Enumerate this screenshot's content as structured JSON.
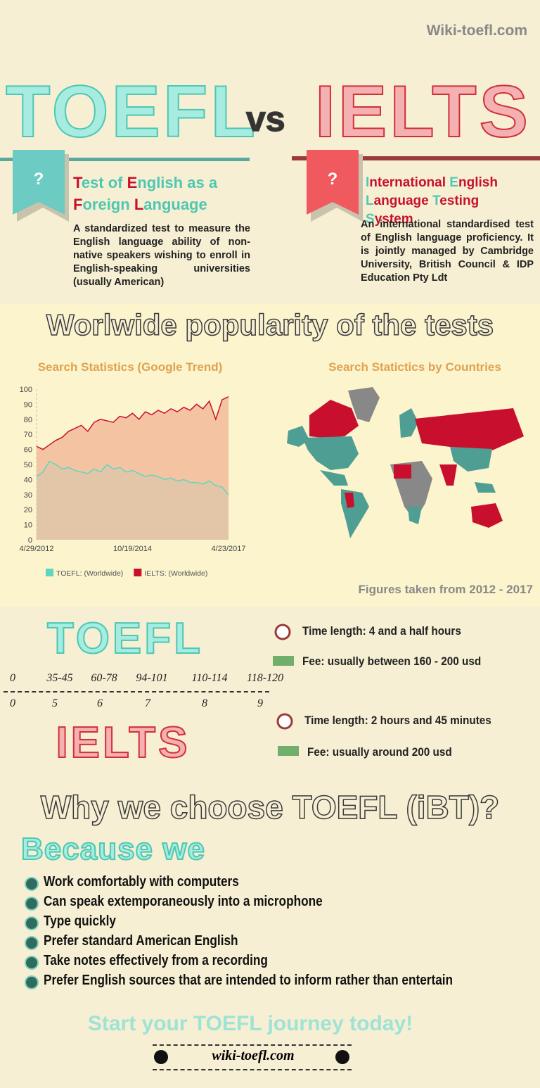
{
  "header": {
    "site": "Wiki-toefl.com",
    "left_title": "TOEFL",
    "vs": "vs",
    "right_title": "IELTS"
  },
  "toefl_box": {
    "badge": "?",
    "acronym": "Test of English as a Foreign Language",
    "description": "A standardized test to measure the English language ability of non-native speakers wishing to enroll in English-speaking universities (usually American)"
  },
  "ielts_box": {
    "badge": "?",
    "acronym": "International English Language Testing System",
    "description": "An international standardised test of English language proficiency. It is jointly managed by Cambridge University, British Council & IDP Education Pty Ldt"
  },
  "popularity": {
    "title": "Worlwide popularity of the tests",
    "map_title": "Search Statictics by Countries",
    "footnote": "Figures taken from 2012 - 2017"
  },
  "chart_data": {
    "type": "area",
    "title": "Search Statistics (Google Trend)",
    "categories": [
      "4/29/2012",
      null,
      null,
      null,
      null,
      null,
      null,
      null,
      null,
      null,
      null,
      null,
      null,
      null,
      null,
      "10/19/2014",
      null,
      null,
      null,
      null,
      null,
      null,
      null,
      null,
      null,
      null,
      null,
      null,
      null,
      null,
      "4/23/2017"
    ],
    "series": [
      {
        "name": "TOEFL: (Worldwide)",
        "color": "#5fd6c2",
        "fill": "#e3c6a8",
        "values": [
          42,
          45,
          52,
          50,
          47,
          48,
          46,
          45,
          44,
          47,
          45,
          50,
          47,
          48,
          45,
          46,
          44,
          42,
          43,
          42,
          40,
          41,
          39,
          40,
          38,
          38,
          37,
          39,
          36,
          35,
          30
        ]
      },
      {
        "name": "IELTS: (Worldwide)",
        "color": "#c8102e",
        "fill": "#f4c4a2",
        "values": [
          62,
          60,
          63,
          66,
          68,
          72,
          74,
          76,
          72,
          78,
          80,
          79,
          78,
          82,
          81,
          84,
          80,
          85,
          83,
          86,
          84,
          87,
          85,
          88,
          86,
          90,
          87,
          92,
          80,
          93,
          95
        ]
      }
    ],
    "ylim": [
      0,
      100
    ],
    "yticks": [
      0,
      10,
      20,
      30,
      40,
      50,
      60,
      70,
      80,
      90,
      100
    ],
    "grid": false,
    "legend": "bottom"
  },
  "scores": {
    "toefl_label": "TOEFL",
    "ielts_label": "IELTS",
    "toefl": [
      "0",
      "35-45",
      "60-78",
      "94-101",
      "110-114",
      "118-120"
    ],
    "ielts": [
      "0",
      "5",
      "6",
      "7",
      "8",
      "9"
    ],
    "toefl_time": "Time length: 4 and a half hours",
    "toefl_fee": "Fee: usually between 160 - 200 usd",
    "ielts_time": "Time length: 2 hours and 45 minutes",
    "ielts_fee": "Fee: usually around 200 usd"
  },
  "why": {
    "title": "Why we choose TOEFL (iBT)?",
    "lead": "Because we",
    "items": [
      "Work comfortably with computers",
      "Can speak extemporaneously into a microphone",
      "Type quickly",
      "Prefer standard American English",
      "Take notes effectively from a recording",
      "Prefer English sources that are intended to inform rather than entertain"
    ]
  },
  "footer": {
    "cta": "Start your TOEFL journey today!",
    "site": "wiki-toefl.com"
  }
}
